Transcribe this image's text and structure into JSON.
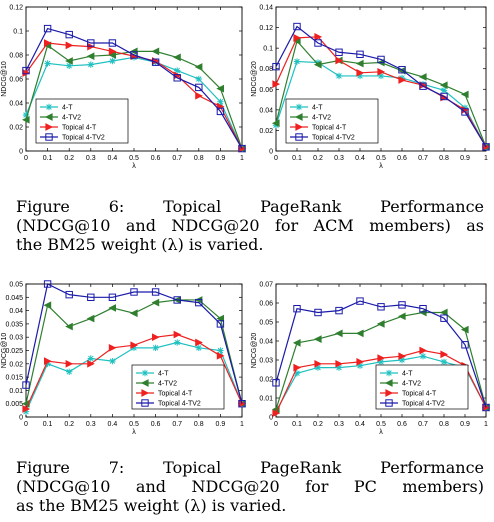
{
  "chart_data": [
    {
      "type": "line",
      "ylabel": "NDCG@10",
      "xlabel": "λ",
      "x": [
        0,
        0.1,
        0.2,
        0.3,
        0.4,
        0.5,
        0.6,
        0.7,
        0.8,
        0.9,
        1
      ],
      "xticks": [
        "0",
        "0.1",
        "0.2",
        "0.3",
        "0.4",
        "0.5",
        "0.6",
        "0.7",
        "0.8",
        "0.9",
        "1"
      ],
      "ylim": [
        0,
        0.12
      ],
      "yticks": [
        "0",
        "0.02",
        "0.04",
        "0.06",
        "0.08",
        "0.1",
        "0.12"
      ],
      "legend": "bottom-left",
      "series": [
        {
          "name": "4-T",
          "color": "#1fc0c0",
          "marker": "star",
          "values": [
            0.03,
            0.073,
            0.071,
            0.072,
            0.075,
            0.078,
            0.074,
            0.067,
            0.06,
            0.041,
            0.002
          ]
        },
        {
          "name": "4-TV2",
          "color": "#2f7f2f",
          "marker": "triangle-left",
          "values": [
            0.026,
            0.088,
            0.075,
            0.079,
            0.08,
            0.083,
            0.083,
            0.078,
            0.07,
            0.052,
            0.002
          ]
        },
        {
          "name": "Topical 4-T",
          "color": "#ee2020",
          "marker": "triangle-right",
          "values": [
            0.065,
            0.09,
            0.088,
            0.087,
            0.083,
            0.079,
            0.075,
            0.063,
            0.046,
            0.037,
            0.002
          ]
        },
        {
          "name": "Topical 4-TV2",
          "color": "#1a1aaa",
          "marker": "square",
          "values": [
            0.067,
            0.102,
            0.097,
            0.09,
            0.09,
            0.08,
            0.074,
            0.061,
            0.053,
            0.033,
            0.002
          ]
        }
      ]
    },
    {
      "type": "line",
      "ylabel": "NDCG@20",
      "xlabel": "λ",
      "x": [
        0,
        0.1,
        0.2,
        0.3,
        0.4,
        0.5,
        0.6,
        0.7,
        0.8,
        0.9,
        1
      ],
      "xticks": [
        "0",
        "0.1",
        "0.2",
        "0.3",
        "0.4",
        "0.5",
        "0.6",
        "0.7",
        "0.8",
        "0.9",
        "1"
      ],
      "ylim": [
        0,
        0.14
      ],
      "yticks": [
        "0",
        "0.02",
        "0.04",
        "0.06",
        "0.08",
        "0.1",
        "0.12",
        "0.14"
      ],
      "legend": "bottom-left",
      "series": [
        {
          "name": "4-T",
          "color": "#1fc0c0",
          "marker": "star",
          "values": [
            0.025,
            0.087,
            0.086,
            0.073,
            0.073,
            0.073,
            0.071,
            0.065,
            0.059,
            0.042,
            0.004
          ]
        },
        {
          "name": "4-TV2",
          "color": "#2f7f2f",
          "marker": "triangle-left",
          "values": [
            0.027,
            0.107,
            0.084,
            0.088,
            0.085,
            0.086,
            0.078,
            0.072,
            0.064,
            0.055,
            0.004
          ]
        },
        {
          "name": "Topical 4-T",
          "color": "#ee2020",
          "marker": "triangle-right",
          "values": [
            0.065,
            0.11,
            0.111,
            0.088,
            0.076,
            0.077,
            0.069,
            0.064,
            0.052,
            0.04,
            0.004
          ]
        },
        {
          "name": "Topical 4-TV2",
          "color": "#1a1aaa",
          "marker": "square",
          "values": [
            0.082,
            0.121,
            0.105,
            0.096,
            0.094,
            0.089,
            0.079,
            0.063,
            0.053,
            0.038,
            0.004
          ]
        }
      ]
    },
    {
      "type": "line",
      "ylabel": "NDCG@10",
      "xlabel": "λ",
      "x": [
        0,
        0.1,
        0.2,
        0.3,
        0.4,
        0.5,
        0.6,
        0.7,
        0.8,
        0.9,
        1
      ],
      "xticks": [
        "0",
        "0.1",
        "0.2",
        "0.3",
        "0.4",
        "0.5",
        "0.6",
        "0.7",
        "0.8",
        "0.9",
        "1"
      ],
      "ylim": [
        0,
        0.05
      ],
      "yticks": [
        "0",
        "0.005",
        "0.01",
        "0.015",
        "0.02",
        "0.025",
        "0.03",
        "0.035",
        "0.04",
        "0.045",
        "0.05"
      ],
      "legend": "bottom-right",
      "series": [
        {
          "name": "4-T",
          "color": "#1fc0c0",
          "marker": "star",
          "values": [
            0.002,
            0.02,
            0.017,
            0.022,
            0.021,
            0.026,
            0.026,
            0.028,
            0.026,
            0.025,
            0.005
          ]
        },
        {
          "name": "4-TV2",
          "color": "#2f7f2f",
          "marker": "triangle-left",
          "values": [
            0.005,
            0.042,
            0.034,
            0.037,
            0.041,
            0.039,
            0.043,
            0.044,
            0.044,
            0.037,
            0.005
          ]
        },
        {
          "name": "Topical 4-T",
          "color": "#ee2020",
          "marker": "triangle-right",
          "values": [
            0.003,
            0.021,
            0.02,
            0.02,
            0.026,
            0.027,
            0.03,
            0.031,
            0.028,
            0.023,
            0.005
          ]
        },
        {
          "name": "Topical 4-TV2",
          "color": "#1a1aaa",
          "marker": "square",
          "values": [
            0.012,
            0.05,
            0.046,
            0.045,
            0.045,
            0.047,
            0.047,
            0.044,
            0.043,
            0.035,
            0.005
          ]
        }
      ]
    },
    {
      "type": "line",
      "ylabel": "NDCG@20",
      "xlabel": "λ",
      "x": [
        0,
        0.1,
        0.2,
        0.3,
        0.4,
        0.5,
        0.6,
        0.7,
        0.8,
        0.9,
        1
      ],
      "xticks": [
        "0",
        "0.1",
        "0.2",
        "0.3",
        "0.4",
        "0.5",
        "0.6",
        "0.7",
        "0.8",
        "0.9",
        "1"
      ],
      "ylim": [
        0,
        0.07
      ],
      "yticks": [
        "0",
        "0.01",
        "0.02",
        "0.03",
        "0.04",
        "0.05",
        "0.06",
        "0.07"
      ],
      "legend": "bottom-right",
      "series": [
        {
          "name": "4-T",
          "color": "#1fc0c0",
          "marker": "star",
          "values": [
            0.003,
            0.023,
            0.026,
            0.026,
            0.027,
            0.029,
            0.03,
            0.032,
            0.029,
            0.026,
            0.005
          ]
        },
        {
          "name": "4-TV2",
          "color": "#2f7f2f",
          "marker": "triangle-left",
          "values": [
            0.004,
            0.039,
            0.041,
            0.044,
            0.044,
            0.049,
            0.053,
            0.055,
            0.055,
            0.046,
            0.005
          ]
        },
        {
          "name": "Topical 4-T",
          "color": "#ee2020",
          "marker": "triangle-right",
          "values": [
            0.002,
            0.026,
            0.028,
            0.028,
            0.029,
            0.031,
            0.032,
            0.035,
            0.033,
            0.027,
            0.005
          ]
        },
        {
          "name": "Topical 4-TV2",
          "color": "#1a1aaa",
          "marker": "square",
          "values": [
            0.018,
            0.057,
            0.055,
            0.056,
            0.061,
            0.058,
            0.059,
            0.057,
            0.052,
            0.038,
            0.005
          ]
        }
      ]
    }
  ],
  "captions": {
    "fig6": {
      "line1": "Figure 6: Topical PageRank Performance",
      "line2": "(NDCG@10 and NDCG@20 for ACM members) as",
      "line3": "the BM25 weight (λ) is varied."
    },
    "fig7": {
      "line1": "Figure 7: Topical PageRank Performance",
      "line2": "(NDCG@10 and NDCG@20 for PC members)",
      "line3": "as the BM25 weight (λ) is varied."
    }
  }
}
